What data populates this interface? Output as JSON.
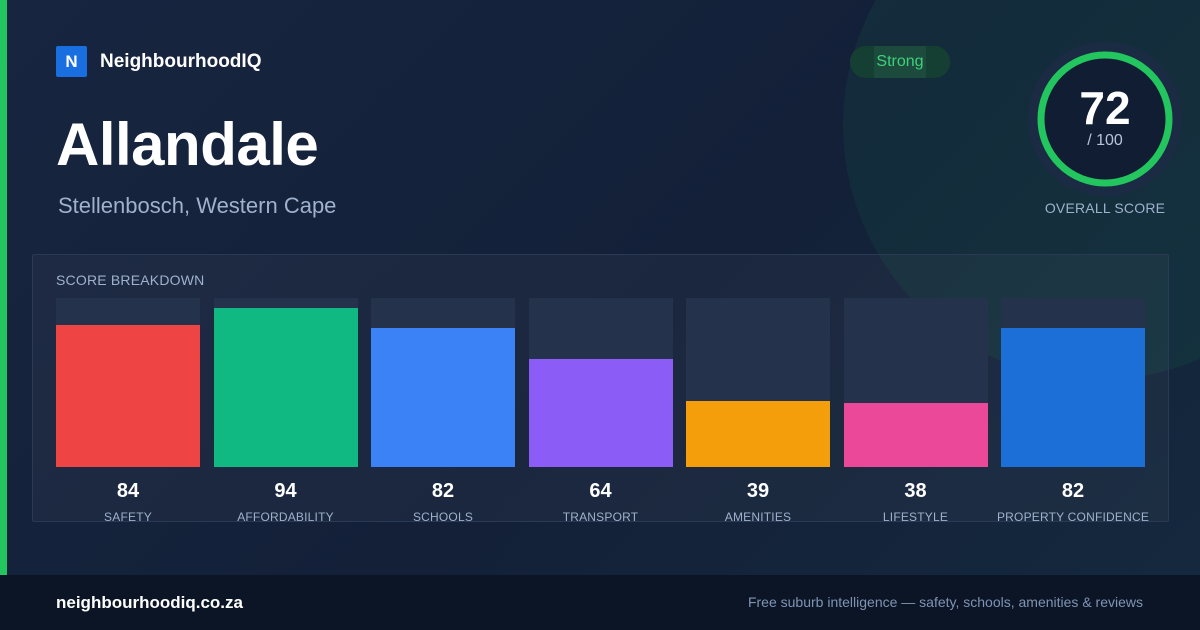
{
  "brand": {
    "logo_letter": "N",
    "name": "NeighbourhoodIQ"
  },
  "suburb": {
    "name": "Allandale",
    "location": "Stellenbosch, Western Cape"
  },
  "badge": {
    "label": "Strong",
    "color": "#3fd17a"
  },
  "overall": {
    "score": "72",
    "max_label": "/ 100",
    "label": "OVERALL SCORE",
    "value": 72,
    "max": 100,
    "color": "#22c55e"
  },
  "breakdown": {
    "title": "SCORE BREAKDOWN"
  },
  "chart_data": {
    "type": "bar",
    "title": "SCORE BREAKDOWN",
    "categories": [
      "SAFETY",
      "AFFORDABILITY",
      "SCHOOLS",
      "TRANSPORT",
      "AMENITIES",
      "LIFESTYLE",
      "PROPERTY CONFIDENCE"
    ],
    "values": [
      84,
      94,
      82,
      64,
      39,
      38,
      82
    ],
    "colors": [
      "#ef4444",
      "#10b981",
      "#3b82f6",
      "#8b5cf6",
      "#f59e0b",
      "#ec4899",
      "#1d6fd8"
    ],
    "ylim": [
      0,
      100
    ],
    "grid": false,
    "legend": "none"
  },
  "footer": {
    "url": "neighbourhoodiq.co.za",
    "tagline": "Free suburb intelligence — safety, schools, amenities & reviews"
  }
}
